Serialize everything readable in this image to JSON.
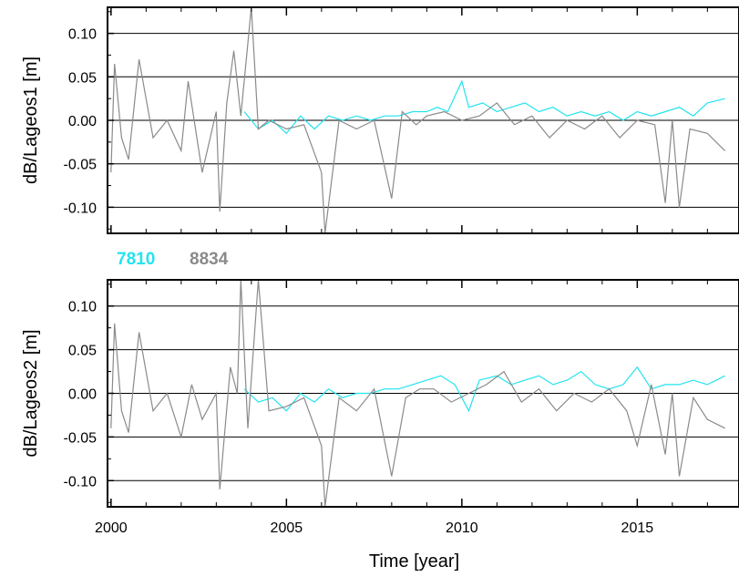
{
  "chart_data": [
    {
      "type": "line",
      "ylabel": "dB/Lageos1 [m]",
      "xlabel": "",
      "xlim": [
        1999.9,
        2017.9
      ],
      "ylim": [
        -0.13,
        0.13
      ],
      "yticks": [
        "0.10",
        "0.05",
        "0.00",
        "-0.05",
        "-0.10"
      ],
      "ytick_values": [
        0.1,
        0.05,
        0.0,
        -0.05,
        -0.1
      ],
      "xtick_values": [
        2000,
        2005,
        2010,
        2015
      ],
      "grid": "horizontal",
      "series": [
        {
          "name": "7810",
          "color": "#22e4ee",
          "x": [
            2003.8,
            2004.2,
            2004.6,
            2005.0,
            2005.4,
            2005.8,
            2006.2,
            2006.6,
            2007.0,
            2007.4,
            2007.8,
            2008.2,
            2008.6,
            2009.0,
            2009.3,
            2009.6,
            2010.0,
            2010.2,
            2010.6,
            2011.0,
            2011.4,
            2011.8,
            2012.2,
            2012.6,
            2013.0,
            2013.4,
            2013.8,
            2014.2,
            2014.6,
            2015.0,
            2015.4,
            2015.8,
            2016.2,
            2016.6,
            2017.0,
            2017.5
          ],
          "y": [
            0.01,
            -0.01,
            0.0,
            -0.015,
            0.005,
            -0.01,
            0.005,
            0.0,
            0.005,
            0.0,
            0.005,
            0.005,
            0.01,
            0.01,
            0.015,
            0.01,
            0.045,
            0.015,
            0.02,
            0.01,
            0.015,
            0.02,
            0.01,
            0.015,
            0.005,
            0.01,
            0.005,
            0.01,
            0.0,
            0.01,
            0.005,
            0.01,
            0.015,
            0.005,
            0.02,
            0.025
          ]
        },
        {
          "name": "8834",
          "color": "#8a8a8a",
          "x": [
            2000.0,
            2000.1,
            2000.3,
            2000.5,
            2000.8,
            2001.2,
            2001.6,
            2002.0,
            2002.2,
            2002.6,
            2003.0,
            2003.1,
            2003.3,
            2003.5,
            2003.7,
            2004.0,
            2004.2,
            2004.5,
            2005.0,
            2005.5,
            2006.0,
            2006.1,
            2006.5,
            2007.0,
            2007.5,
            2008.0,
            2008.3,
            2008.7,
            2009.0,
            2009.5,
            2010.0,
            2010.5,
            2011.0,
            2011.5,
            2012.0,
            2012.5,
            2013.0,
            2013.5,
            2014.0,
            2014.5,
            2015.0,
            2015.5,
            2015.8,
            2016.0,
            2016.2,
            2016.5,
            2017.0,
            2017.5
          ],
          "y": [
            -0.06,
            0.065,
            -0.02,
            -0.045,
            0.07,
            -0.02,
            0.0,
            -0.035,
            0.045,
            -0.06,
            0.01,
            -0.105,
            0.02,
            0.08,
            0.005,
            0.13,
            -0.01,
            0.0,
            -0.01,
            -0.005,
            -0.06,
            -0.13,
            0.0,
            -0.01,
            0.0,
            -0.09,
            0.01,
            -0.005,
            0.005,
            0.01,
            0.0,
            0.005,
            0.02,
            -0.005,
            0.005,
            -0.02,
            0.0,
            -0.01,
            0.005,
            -0.02,
            0.0,
            -0.005,
            -0.095,
            0.0,
            -0.1,
            -0.01,
            -0.015,
            -0.035
          ]
        }
      ]
    },
    {
      "type": "line",
      "ylabel": "dB/Lageos2 [m]",
      "xlabel": "Time [year]",
      "xlim": [
        1999.9,
        2017.9
      ],
      "ylim": [
        -0.13,
        0.13
      ],
      "yticks": [
        "0.10",
        "0.05",
        "0.00",
        "-0.05",
        "-0.10"
      ],
      "ytick_values": [
        0.1,
        0.05,
        0.0,
        -0.05,
        -0.1
      ],
      "xticks": [
        "2000",
        "2005",
        "2010",
        "2015"
      ],
      "xtick_values": [
        2000,
        2005,
        2010,
        2015
      ],
      "grid": "horizontal",
      "series": [
        {
          "name": "7810",
          "color": "#22e4ee",
          "x": [
            2003.8,
            2004.2,
            2004.6,
            2005.0,
            2005.4,
            2005.8,
            2006.2,
            2006.6,
            2007.0,
            2007.4,
            2007.8,
            2008.2,
            2008.6,
            2009.0,
            2009.4,
            2009.8,
            2010.2,
            2010.5,
            2011.0,
            2011.4,
            2011.8,
            2012.2,
            2012.6,
            2013.0,
            2013.4,
            2013.8,
            2014.2,
            2014.6,
            2015.0,
            2015.4,
            2015.8,
            2016.2,
            2016.6,
            2017.0,
            2017.5
          ],
          "y": [
            0.005,
            -0.01,
            -0.005,
            -0.02,
            0.0,
            -0.01,
            0.005,
            -0.005,
            0.0,
            0.0,
            0.005,
            0.005,
            0.01,
            0.015,
            0.02,
            0.01,
            -0.02,
            0.015,
            0.02,
            0.01,
            0.015,
            0.02,
            0.01,
            0.015,
            0.025,
            0.01,
            0.005,
            0.01,
            0.03,
            0.005,
            0.01,
            0.01,
            0.015,
            0.01,
            0.02
          ]
        },
        {
          "name": "8834",
          "color": "#8a8a8a",
          "x": [
            2000.0,
            2000.1,
            2000.3,
            2000.5,
            2000.8,
            2001.2,
            2001.6,
            2002.0,
            2002.3,
            2002.6,
            2003.0,
            2003.1,
            2003.4,
            2003.6,
            2003.7,
            2003.9,
            2004.2,
            2004.5,
            2005.0,
            2005.5,
            2006.0,
            2006.1,
            2006.5,
            2007.0,
            2007.5,
            2008.0,
            2008.4,
            2008.8,
            2009.2,
            2009.7,
            2010.2,
            2010.7,
            2011.2,
            2011.7,
            2012.2,
            2012.7,
            2013.2,
            2013.7,
            2014.2,
            2014.7,
            2015.0,
            2015.4,
            2015.8,
            2016.0,
            2016.2,
            2016.6,
            2017.0,
            2017.5
          ],
          "y": [
            -0.04,
            0.08,
            -0.02,
            -0.045,
            0.07,
            -0.02,
            0.0,
            -0.05,
            0.01,
            -0.03,
            0.0,
            -0.11,
            0.03,
            0.0,
            0.13,
            -0.04,
            0.13,
            -0.02,
            -0.015,
            -0.005,
            -0.06,
            -0.13,
            -0.005,
            -0.02,
            0.005,
            -0.095,
            -0.005,
            0.005,
            0.005,
            -0.01,
            0.0,
            0.01,
            0.025,
            -0.01,
            0.005,
            -0.02,
            0.0,
            -0.01,
            0.005,
            -0.02,
            -0.06,
            0.01,
            -0.07,
            0.0,
            -0.095,
            -0.005,
            -0.03,
            -0.04
          ]
        }
      ]
    }
  ],
  "legend": [
    {
      "label": "7810",
      "color": "#22e4ee"
    },
    {
      "label": "8834",
      "color": "#8a8a8a"
    }
  ]
}
